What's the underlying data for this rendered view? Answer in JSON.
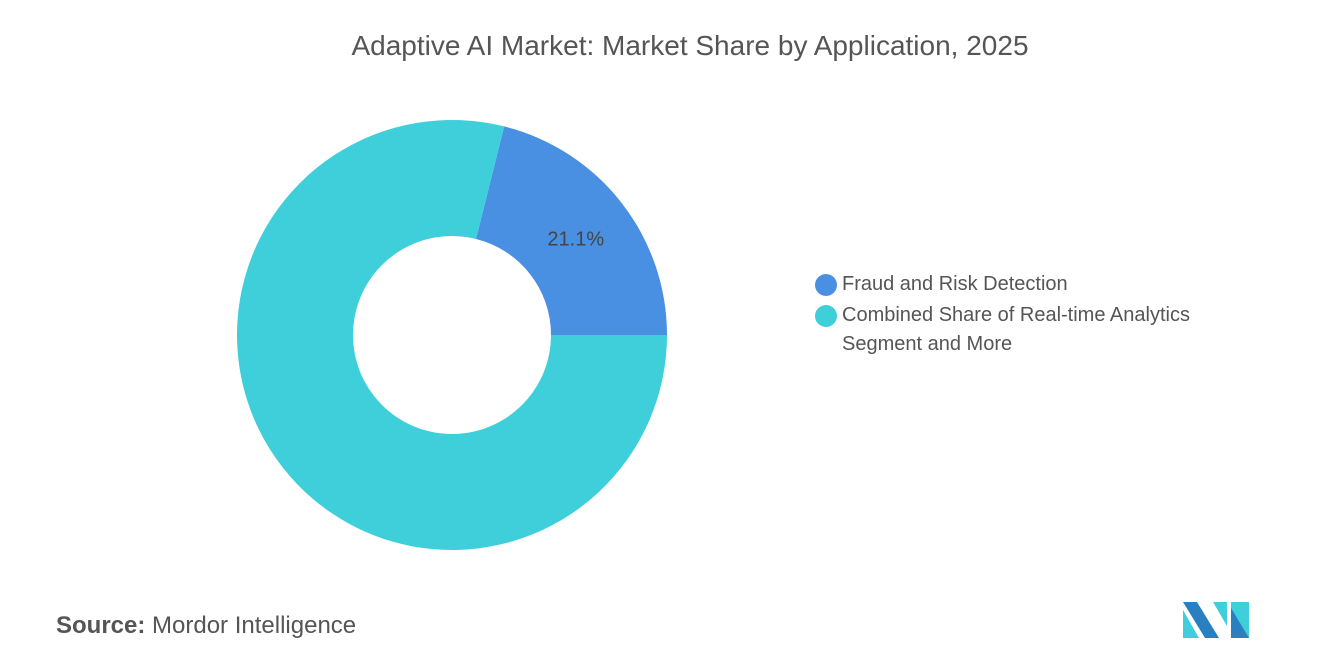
{
  "chart_data": {
    "type": "pie",
    "donut": true,
    "title": "Adaptive AI Market: Market Share by Application, 2025",
    "slices": [
      {
        "label": "Fraud and Risk Detection",
        "value": 21.1,
        "color": "#4a90e2",
        "data_label": "21.1%"
      },
      {
        "label": "Combined Share of Real-time Analytics Segment and More",
        "value": 78.9,
        "color": "#3ecfdb",
        "data_label": ""
      }
    ],
    "legend_position": "right"
  },
  "source": {
    "label": "Source:",
    "value": "Mordor Intelligence"
  }
}
